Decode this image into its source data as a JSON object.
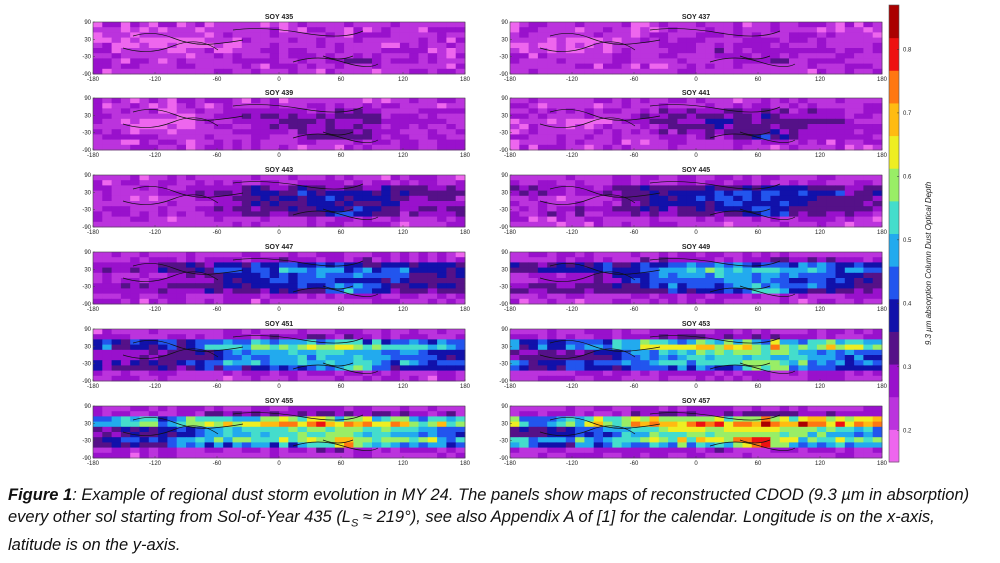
{
  "chart_data": {
    "type": "heatmap",
    "panels": [
      {
        "title": "SOY 435"
      },
      {
        "title": "SOY 437"
      },
      {
        "title": "SOY 439"
      },
      {
        "title": "SOY 441"
      },
      {
        "title": "SOY 443"
      },
      {
        "title": "SOY 445"
      },
      {
        "title": "SOY 447"
      },
      {
        "title": "SOY 449"
      },
      {
        "title": "SOY 451"
      },
      {
        "title": "SOY 453"
      },
      {
        "title": "SOY 455"
      },
      {
        "title": "SOY 457"
      }
    ],
    "x_ticks": [
      "-180",
      "-120",
      "-60",
      "0",
      "60",
      "120",
      "180"
    ],
    "y_ticks": [
      "90",
      "30",
      "-30",
      "-90"
    ],
    "xlim": [
      -180,
      180
    ],
    "ylim": [
      -90,
      90
    ],
    "colorbar": {
      "label": "9.3 µm absorption Column Dust Optical Depth",
      "ticks": [
        "0.2",
        "0.3",
        "0.4",
        "0.5",
        "0.6",
        "0.7",
        "0.8"
      ],
      "range": [
        0.15,
        0.87
      ],
      "colors": [
        "#ee66ee",
        "#bb33dd",
        "#9911cc",
        "#551188",
        "#1111aa",
        "#2255ee",
        "#22aaee",
        "#44ddcc",
        "#99ee66",
        "#eeee22",
        "#ffbb11",
        "#ff7711",
        "#ee1111",
        "#aa0000"
      ]
    }
  },
  "caption": {
    "lead": "Figure 1",
    "text_before_sub": ": Example of regional dust storm evolution in MY 24. The panels show maps of reconstructed CDOD (9.3 µm in absorption) every other sol starting from Sol-of-Year 435 (L",
    "sub": "S",
    "text_after_sub": " ≈ 219°), see also Appendix A of [1] for the calendar. Longitude is on the x-axis, latitude is on the y-axis."
  }
}
